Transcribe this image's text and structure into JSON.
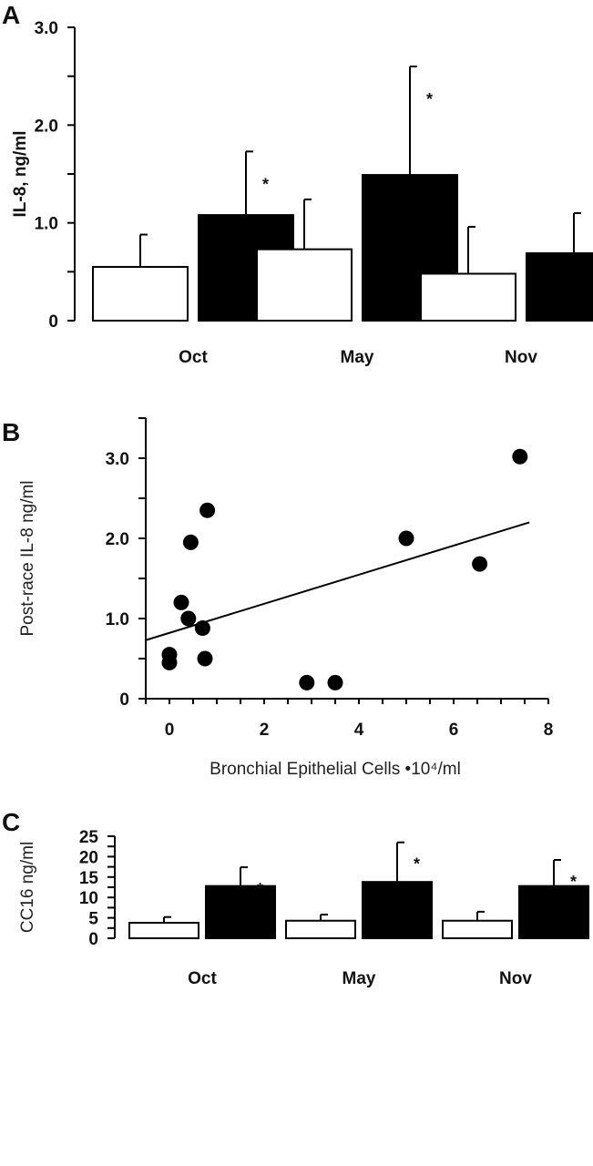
{
  "chart_data": [
    {
      "panel": "A",
      "type": "bar",
      "ylabel": "IL-8, ng/ml",
      "ylim": [
        0,
        3.0
      ],
      "yticks": [
        "0",
        "1.0",
        "2.0",
        "3.0"
      ],
      "yticks_values": [
        0,
        1.0,
        2.0,
        3.0
      ],
      "categories": [
        "Oct",
        "May",
        "Nov"
      ],
      "series": [
        {
          "values": [
            0.55,
            0.73,
            0.48
          ],
          "errors": [
            0.33,
            0.51,
            0.48
          ],
          "color": "#ffffff"
        },
        {
          "values": [
            1.08,
            1.49,
            0.69
          ],
          "errors": [
            0.65,
            1.11,
            0.41
          ],
          "color": "#000000"
        }
      ],
      "annotations": [
        "*",
        "*",
        ""
      ]
    },
    {
      "panel": "B",
      "type": "scatter",
      "xlabel": "Bronchial Epithelial Cells •10⁴/ml",
      "ylabel": "Post-race IL-8 ng/ml",
      "xlim": [
        -0.5,
        8
      ],
      "ylim": [
        0,
        3.5
      ],
      "xticks": [
        "0",
        "2",
        "4",
        "6",
        "8"
      ],
      "xticks_values": [
        0,
        2,
        4,
        6,
        8
      ],
      "yticks": [
        "0",
        "1.0",
        "2.0",
        "3.0"
      ],
      "yticks_values": [
        0,
        1.0,
        2.0,
        3.0
      ],
      "points": [
        {
          "x": 0.0,
          "y": 0.55
        },
        {
          "x": 0.0,
          "y": 0.45
        },
        {
          "x": 0.25,
          "y": 1.2
        },
        {
          "x": 0.4,
          "y": 1.0
        },
        {
          "x": 0.45,
          "y": 1.95
        },
        {
          "x": 0.7,
          "y": 0.88
        },
        {
          "x": 0.75,
          "y": 0.5
        },
        {
          "x": 0.8,
          "y": 2.35
        },
        {
          "x": 2.9,
          "y": 0.2
        },
        {
          "x": 3.5,
          "y": 0.2
        },
        {
          "x": 5.0,
          "y": 2.0
        },
        {
          "x": 6.55,
          "y": 1.68
        },
        {
          "x": 7.4,
          "y": 3.02
        }
      ],
      "trendline": {
        "x": [
          -0.5,
          7.6
        ],
        "y": [
          0.73,
          2.2
        ]
      }
    },
    {
      "panel": "C",
      "type": "bar",
      "ylabel": "CC16 ng/ml",
      "ylim": [
        0,
        25
      ],
      "yticks": [
        "0",
        "5",
        "10",
        "15",
        "20",
        "25"
      ],
      "yticks_values": [
        0,
        5,
        10,
        15,
        20,
        25
      ],
      "categories": [
        "Oct",
        "May",
        "Nov"
      ],
      "series": [
        {
          "values": [
            3.8,
            4.3,
            4.3
          ],
          "errors": [
            1.4,
            1.5,
            2.2
          ],
          "color": "#ffffff"
        },
        {
          "values": [
            12.8,
            13.8,
            12.8
          ],
          "errors": [
            4.6,
            9.7,
            6.4
          ],
          "color": "#000000"
        }
      ],
      "annotations": [
        "*",
        "*",
        "*"
      ]
    }
  ]
}
